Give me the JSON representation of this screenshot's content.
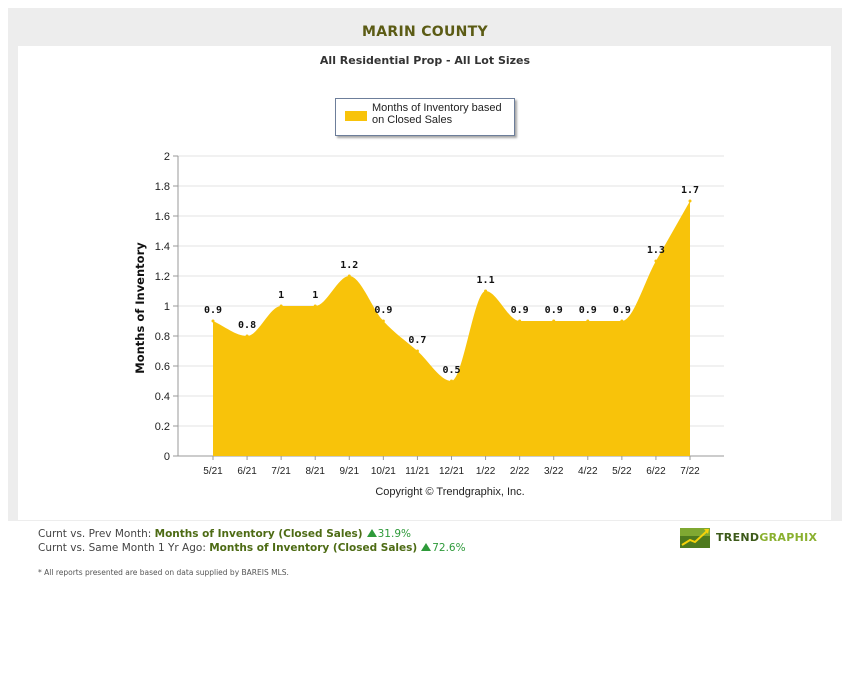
{
  "header": {
    "county": "MARIN COUNTY",
    "subtitle": "All Residential Prop - All Lot Sizes"
  },
  "legend": {
    "label": "Months of Inventory based on Closed Sales",
    "color": "#f8c30a"
  },
  "chart_data": {
    "type": "area",
    "title": "",
    "xlabel": "",
    "ylabel": "Months of Inventory",
    "ylim": [
      0,
      2
    ],
    "yticks": [
      "0",
      "0.2",
      "0.4",
      "0.6",
      "0.8",
      "1",
      "1.2",
      "1.4",
      "1.6",
      "1.8",
      "2"
    ],
    "grid": true,
    "legend_position": "top",
    "categories": [
      "5/21",
      "6/21",
      "7/21",
      "8/21",
      "9/21",
      "10/21",
      "11/21",
      "12/21",
      "1/22",
      "2/22",
      "3/22",
      "4/22",
      "5/22",
      "6/22",
      "7/22"
    ],
    "series": [
      {
        "name": "Months of Inventory based on Closed Sales",
        "color": "#f8c30a",
        "values": [
          0.9,
          0.8,
          1,
          1,
          1.2,
          0.9,
          0.7,
          0.5,
          1.1,
          0.9,
          0.9,
          0.9,
          0.9,
          1.3,
          1.7
        ],
        "labels": [
          "0.9",
          "0.8",
          "1",
          "1",
          "1.2",
          "0.9",
          "0.7",
          "0.5",
          "1.1",
          "0.9",
          "0.9",
          "0.9",
          "0.9",
          "1.3",
          "1.7"
        ]
      }
    ]
  },
  "copyright": "Copyright © Trendgraphix, Inc.",
  "stats": {
    "line1_prefix": "Curnt vs. Prev Month:",
    "line1_metric": "Months of Inventory (Closed Sales)",
    "line1_value": "31.9%",
    "line2_prefix": "Curnt vs. Same Month 1 Yr Ago:",
    "line2_metric": "Months of Inventory (Closed Sales)",
    "line2_value": "72.6%",
    "up_color": "#2e9a3a"
  },
  "footnote": "* All reports presented are based on data supplied by BAREIS MLS.",
  "logo": {
    "text_dark": "TREND",
    "text_light": "GRAPHIX"
  }
}
